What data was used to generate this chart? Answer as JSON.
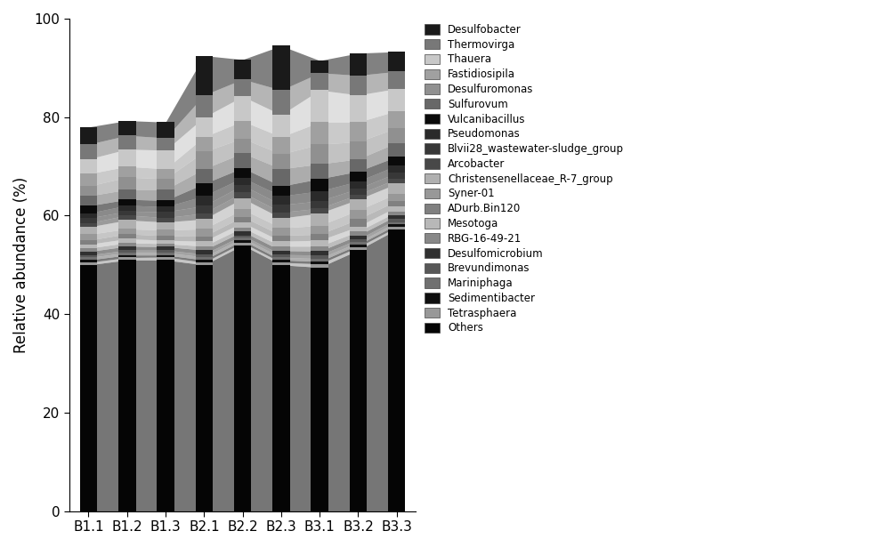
{
  "categories": [
    "B1.1",
    "B1.2",
    "B1.3",
    "B2.1",
    "B2.2",
    "B2.3",
    "B3.1",
    "B3.2",
    "B3.3"
  ],
  "taxa": [
    "Others",
    "Tetrasphaera",
    "Sedimentibacter",
    "Mariniphaga",
    "Brevundimonas",
    "Desulfomicrobium",
    "RBG-16-49-21",
    "Mesotoga",
    "ADurb.Bin120",
    "Syner-01",
    "Christensenellaceae_R-7_group",
    "Arcobacter",
    "Blvii28_wastewater-sludge_group",
    "Pseudomonas",
    "Vulcanibacillus",
    "Sulfurovum",
    "Desulfuromonas",
    "Fastidiosipila",
    "Thauera",
    "Thermovirga",
    "Desulfobacter"
  ],
  "colors": [
    "#050505",
    "#989898",
    "#0f0f0f",
    "#707070",
    "#585858",
    "#303030",
    "#888888",
    "#b8b8b8",
    "#808080",
    "#989898",
    "#b0b0b0",
    "#484848",
    "#383838",
    "#2a2a2a",
    "#0a0a0a",
    "#686868",
    "#909090",
    "#a0a0a0",
    "#c8c8c8",
    "#787878",
    "#1a1a1a"
  ],
  "legend_taxa": [
    "Desulfobacter",
    "Thermovirga",
    "Thauera",
    "Fastidiosipila",
    "Desulfuromonas",
    "Sulfurovum",
    "Vulcanibacillus",
    "Pseudomonas",
    "Blvii28_wastewater-sludge_group",
    "Arcobacter",
    "Christensenellaceae_R-7_group",
    "Syner-01",
    "ADurb.Bin120",
    "Mesotoga",
    "RBG-16-49-21",
    "Desulfomicrobium",
    "Brevundimonas",
    "Mariniphaga",
    "Sedimentibacter",
    "Tetrasphaera",
    "Others"
  ],
  "legend_colors": [
    "#1a1a1a",
    "#787878",
    "#c8c8c8",
    "#a0a0a0",
    "#909090",
    "#686868",
    "#0a0a0a",
    "#2a2a2a",
    "#383838",
    "#484848",
    "#b0b0b0",
    "#989898",
    "#808080",
    "#b8b8b8",
    "#888888",
    "#303030",
    "#585858",
    "#707070",
    "#0f0f0f",
    "#989898",
    "#050505"
  ],
  "data": {
    "B1.1": [
      50.0,
      0.5,
      0.5,
      0.5,
      0.5,
      0.7,
      0.7,
      0.8,
      0.8,
      1.2,
      1.5,
      0.8,
      1.0,
      1.0,
      1.5,
      2.0,
      2.0,
      2.5,
      3.0,
      3.0,
      3.5
    ],
    "B1.2": [
      51.0,
      0.5,
      0.5,
      0.5,
      0.5,
      0.8,
      0.7,
      0.8,
      1.0,
      1.0,
      1.8,
      1.0,
      0.8,
      1.2,
      1.2,
      2.0,
      2.5,
      2.2,
      3.5,
      2.8,
      3.0
    ],
    "B1.3": [
      51.0,
      0.6,
      0.4,
      0.5,
      0.5,
      0.7,
      0.6,
      0.7,
      0.9,
      1.2,
      1.6,
      0.9,
      1.2,
      1.0,
      1.3,
      2.2,
      2.2,
      2.0,
      3.8,
      2.5,
      3.2
    ],
    "B2.1": [
      50.0,
      0.5,
      0.5,
      0.6,
      0.6,
      0.8,
      0.8,
      1.0,
      1.0,
      1.5,
      2.0,
      1.2,
      1.5,
      2.0,
      2.5,
      3.0,
      3.5,
      3.0,
      4.0,
      4.5,
      8.0
    ],
    "B2.2": [
      54.0,
      0.5,
      0.5,
      0.5,
      0.5,
      0.8,
      0.8,
      1.0,
      1.2,
      1.5,
      2.2,
      1.2,
      1.5,
      1.5,
      2.0,
      3.0,
      3.0,
      3.5,
      5.0,
      3.5,
      4.0
    ],
    "B2.3": [
      50.0,
      0.5,
      0.5,
      0.5,
      0.6,
      0.8,
      0.9,
      1.0,
      1.2,
      1.5,
      2.0,
      1.2,
      1.5,
      1.8,
      2.0,
      3.5,
      3.0,
      3.5,
      4.5,
      5.0,
      9.0
    ],
    "B3.1": [
      49.5,
      0.7,
      0.5,
      0.6,
      0.7,
      0.8,
      1.0,
      1.2,
      1.2,
      1.8,
      2.5,
      1.0,
      1.5,
      2.0,
      2.5,
      3.0,
      4.0,
      4.5,
      6.5,
      3.5,
      2.5
    ],
    "B3.2": [
      53.0,
      0.6,
      0.5,
      0.5,
      0.6,
      0.8,
      0.8,
      1.0,
      1.5,
      1.8,
      2.2,
      1.0,
      1.2,
      1.5,
      2.0,
      2.5,
      3.5,
      4.0,
      5.5,
      4.0,
      4.5
    ],
    "B3.3": [
      57.2,
      0.5,
      0.5,
      0.5,
      0.6,
      0.7,
      0.8,
      1.0,
      1.2,
      1.5,
      2.0,
      1.0,
      1.2,
      1.5,
      1.8,
      2.8,
      3.0,
      3.5,
      4.5,
      3.5,
      4.0
    ]
  },
  "ylabel": "Relative abundance (%)",
  "ylim": [
    0,
    100
  ],
  "background_color": "#ffffff",
  "bar_width": 0.45,
  "area_alpha": 0.55
}
